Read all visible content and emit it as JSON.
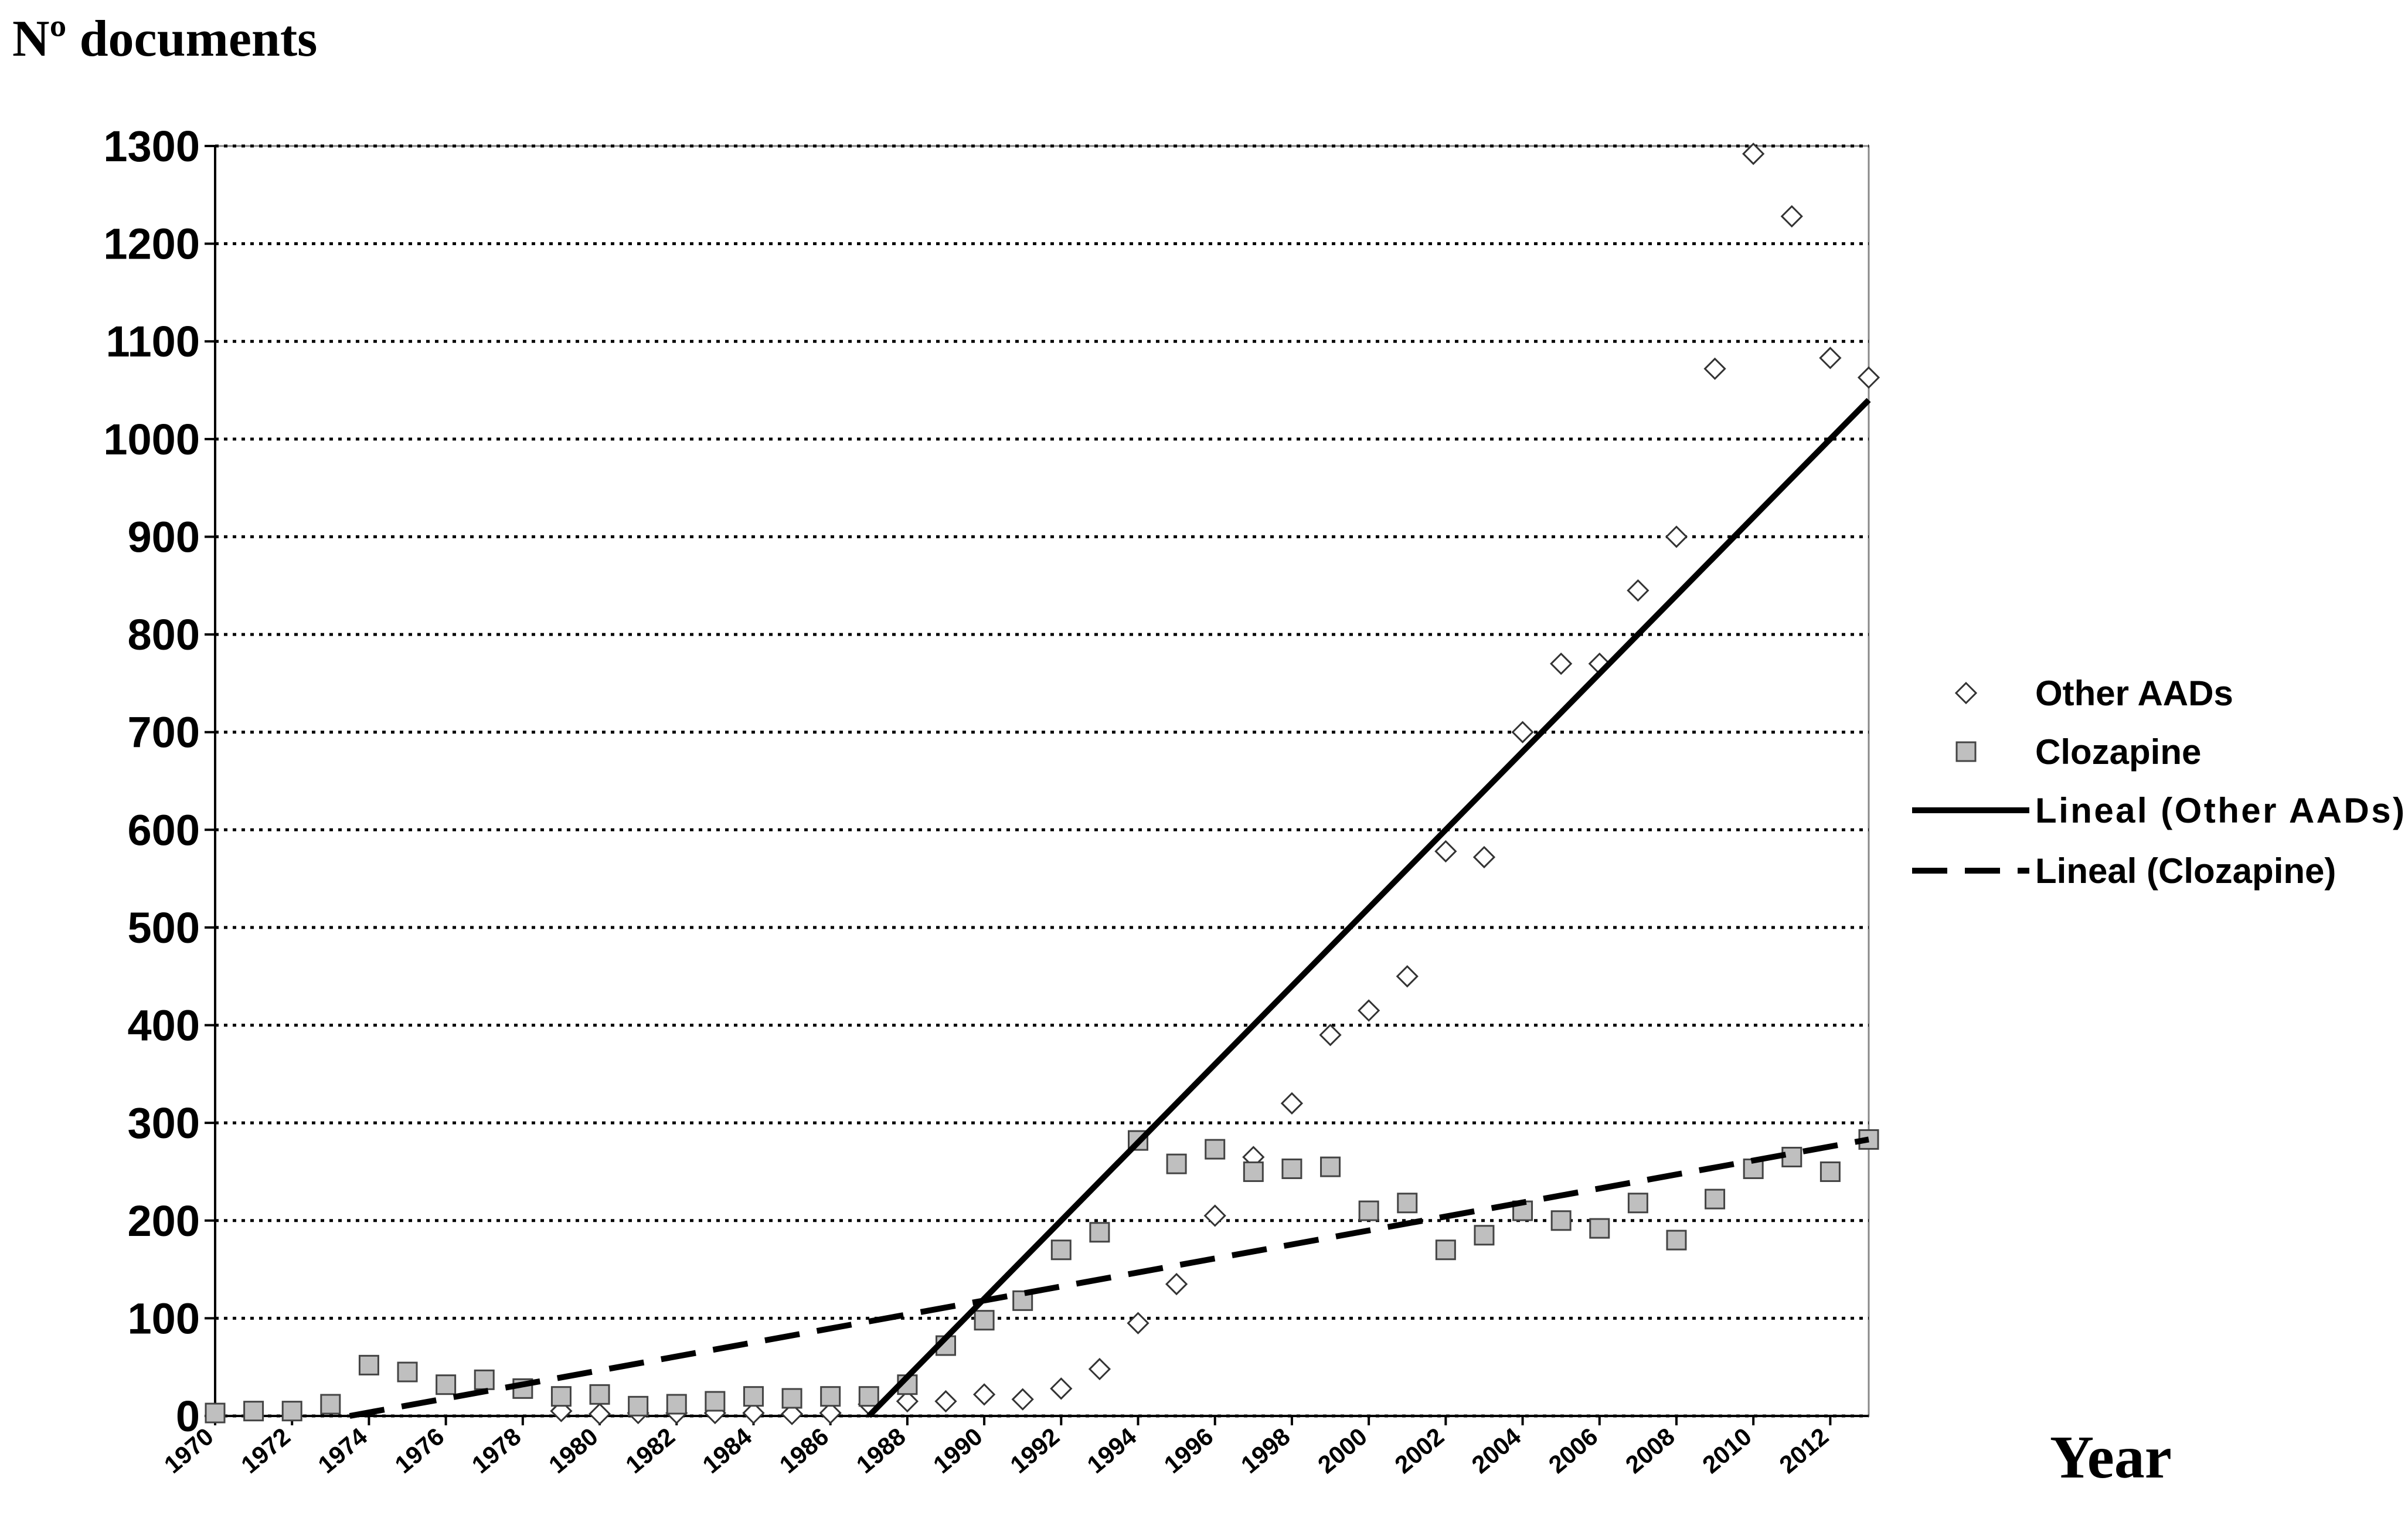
{
  "chart_data": {
    "type": "scatter",
    "y_label": "Nº documents",
    "x_label": "Year",
    "x": [
      1970,
      1971,
      1972,
      1973,
      1974,
      1975,
      1976,
      1977,
      1978,
      1979,
      1980,
      1981,
      1982,
      1983,
      1984,
      1985,
      1986,
      1987,
      1988,
      1989,
      1990,
      1991,
      1992,
      1993,
      1994,
      1995,
      1996,
      1997,
      1998,
      1999,
      2000,
      2001,
      2002,
      2003,
      2004,
      2005,
      2006,
      2007,
      2008,
      2009,
      2010,
      2011,
      2012,
      2013
    ],
    "series": [
      {
        "name": "Other AADs",
        "marker": "diamond",
        "color": "#ffffff",
        "values": [
          null,
          null,
          null,
          null,
          null,
          null,
          null,
          null,
          null,
          5,
          2,
          3,
          3,
          3,
          3,
          2,
          3,
          12,
          15,
          15,
          22,
          17,
          28,
          48,
          95,
          135,
          205,
          265,
          320,
          390,
          415,
          450,
          578,
          572,
          700,
          770,
          770,
          845,
          900,
          1072,
          1292,
          1228,
          1083,
          1063
        ]
      },
      {
        "name": "Clozapine",
        "marker": "square",
        "color": "#bfbfbf",
        "values": [
          3,
          5,
          5,
          12,
          52,
          45,
          32,
          37,
          28,
          20,
          22,
          10,
          12,
          15,
          20,
          18,
          20,
          20,
          32,
          72,
          98,
          118,
          170,
          188,
          282,
          258,
          273,
          250,
          253,
          255,
          210,
          218,
          170,
          185,
          210,
          200,
          192,
          218,
          180,
          222,
          253,
          265,
          250,
          283
        ]
      }
    ],
    "trendlines": [
      {
        "name": "Lineal (Other AADs)",
        "dash": false,
        "color": "#000000",
        "x": [
          1987,
          2013
        ],
        "values": [
          0,
          1040
        ]
      },
      {
        "name": "Lineal (Clozapine)",
        "dash": true,
        "color": "#000000",
        "x": [
          1973.5,
          2013
        ],
        "values": [
          0,
          283
        ]
      }
    ],
    "xlim": [
      1970,
      2013
    ],
    "xticks": [
      1970,
      1972,
      1974,
      1976,
      1978,
      1980,
      1982,
      1984,
      1986,
      1988,
      1990,
      1992,
      1994,
      1996,
      1998,
      2000,
      2002,
      2004,
      2006,
      2008,
      2010,
      2012
    ],
    "ylim": [
      0,
      1300
    ],
    "yticks": [
      0,
      100,
      200,
      300,
      400,
      500,
      600,
      700,
      800,
      900,
      1000,
      1100,
      1200,
      1300
    ],
    "grid": true,
    "legend": "right"
  }
}
